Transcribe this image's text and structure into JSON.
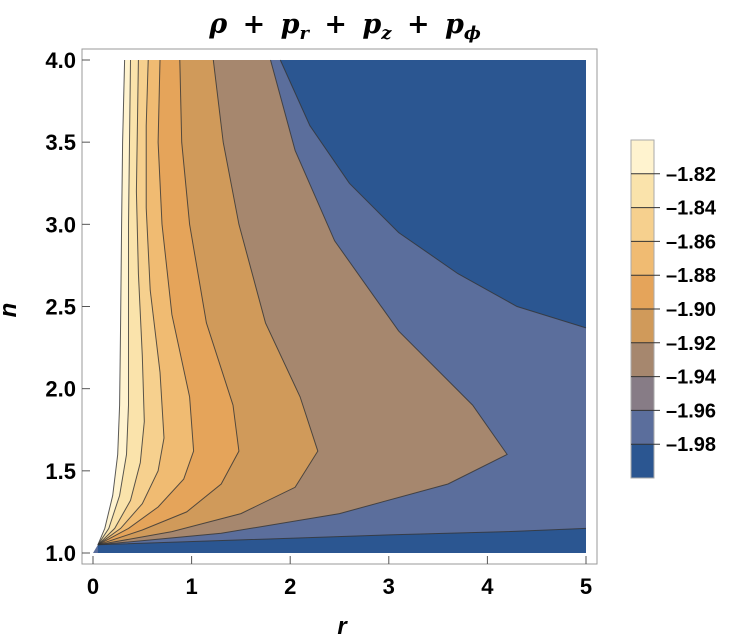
{
  "chart_data": {
    "type": "contour",
    "title": "ρ + p_r + p_z + p_φ",
    "title_parts": {
      "rho": "ρ",
      "plus": "+",
      "p": "p",
      "sub_r": "r",
      "sub_z": "z",
      "sub_phi": "ϕ"
    },
    "xlabel": "r",
    "ylabel": "n",
    "xlim": [
      0,
      5
    ],
    "ylim": [
      1.0,
      4.0
    ],
    "x_ticks": [
      0,
      1,
      2,
      3,
      4,
      5
    ],
    "x_tick_labels": [
      "0",
      "1",
      "2",
      "3",
      "4",
      "5"
    ],
    "y_ticks": [
      1.0,
      1.5,
      2.0,
      2.5,
      3.0,
      3.5,
      4.0
    ],
    "y_tick_labels": [
      "1.0",
      "1.5",
      "2.0",
      "2.5",
      "3.0",
      "3.5",
      "4.0"
    ],
    "contour_levels": [
      -1.98,
      -1.96,
      -1.94,
      -1.92,
      -1.9,
      -1.88,
      -1.86,
      -1.84,
      -1.82
    ],
    "legend_labels": [
      "–1.82",
      "–1.84",
      "–1.86",
      "–1.88",
      "–1.90",
      "–1.92",
      "–1.94",
      "–1.96",
      "–1.98"
    ],
    "band_colors": [
      "#2b5691",
      "#5b6e9c",
      "#877c86",
      "#a6876e",
      "#d09a5a",
      "#e5a45a",
      "#f0bb72",
      "#f6d08e",
      "#fae3ab",
      "#fff3cf"
    ],
    "colorscheme": "blue-gray-orange-cream",
    "legend_position": "right",
    "grid": false
  }
}
